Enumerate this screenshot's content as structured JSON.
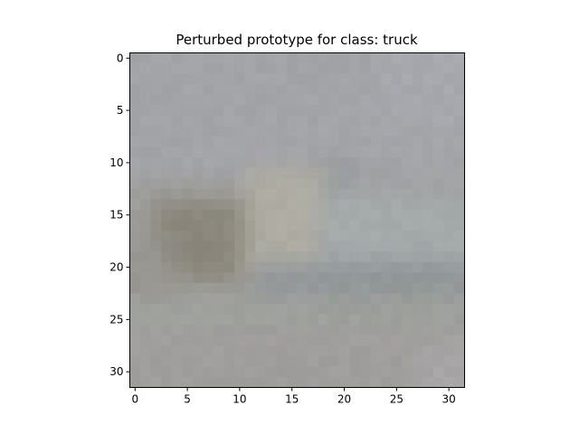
{
  "figure": {
    "title": "Perturbed prototype for class: truck"
  },
  "axes": {
    "x_ticks": [
      "0",
      "5",
      "10",
      "15",
      "20",
      "25",
      "30"
    ],
    "y_ticks": [
      "0",
      "5",
      "10",
      "15",
      "20",
      "25",
      "30"
    ],
    "x_range": [
      -0.5,
      31.5
    ],
    "y_range": [
      -0.5,
      31.5
    ],
    "y_inverted": true,
    "grid": false
  },
  "image": {
    "grid_size": [
      32,
      32
    ],
    "base_color": "#9e9e9c",
    "tone_patches": [
      {
        "rows": [
          0,
          11
        ],
        "cols": [
          0,
          31
        ],
        "color": "#a3a4a8"
      },
      {
        "rows": [
          0,
          7
        ],
        "cols": [
          24,
          31
        ],
        "color": "#a6a8ad"
      },
      {
        "rows": [
          10,
          14
        ],
        "cols": [
          17,
          21
        ],
        "color": "#979a9e"
      },
      {
        "rows": [
          11,
          20
        ],
        "cols": [
          11,
          18
        ],
        "color": "#aeaca2"
      },
      {
        "rows": [
          13,
          20
        ],
        "cols": [
          18,
          31
        ],
        "color": "#a4a9aa"
      },
      {
        "rows": [
          14,
          21
        ],
        "cols": [
          2,
          10
        ],
        "color": "#8f8b80"
      },
      {
        "rows": [
          15,
          20
        ],
        "cols": [
          3,
          9
        ],
        "color": "#8a867b"
      },
      {
        "rows": [
          18,
          22
        ],
        "cols": [
          0,
          3
        ],
        "color": "#979590"
      },
      {
        "rows": [
          20,
          23
        ],
        "cols": [
          12,
          31
        ],
        "color": "#92979a"
      },
      {
        "rows": [
          21,
          23
        ],
        "cols": [
          18,
          30
        ],
        "color": "#8e9596"
      },
      {
        "rows": [
          23,
          27
        ],
        "cols": [
          0,
          31
        ],
        "color": "#9ea09c"
      },
      {
        "rows": [
          27,
          31
        ],
        "cols": [
          0,
          31
        ],
        "color": "#a09e9d"
      },
      {
        "rows": [
          28,
          31
        ],
        "cols": [
          28,
          31
        ],
        "color": "#a8a5a7"
      }
    ]
  }
}
